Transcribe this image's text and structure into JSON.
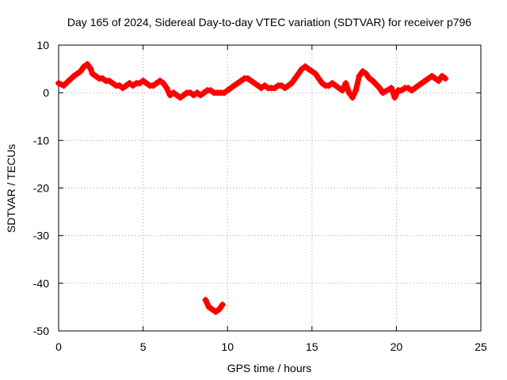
{
  "chart_data": {
    "type": "scatter",
    "title": "Day 165 of 2024, Sidereal Day-to-day VTEC variation (SDTVAR) for receiver p796",
    "xlabel": "GPS time / hours",
    "ylabel": "SDTVAR / TECUs",
    "xlim": [
      0,
      25
    ],
    "ylim": [
      -50,
      10
    ],
    "xticks": [
      "0",
      "5",
      "10",
      "15",
      "20",
      "25"
    ],
    "yticks": [
      "10",
      "0",
      "-10",
      "-20",
      "-30",
      "-40",
      "-50"
    ],
    "grid": true,
    "marker": "plus",
    "series": [
      {
        "name": "SDTVAR",
        "color": "#ff0000",
        "x": [
          0.0,
          0.3,
          0.6,
          0.9,
          1.1,
          1.3,
          1.5,
          1.7,
          1.9,
          2.0,
          2.2,
          2.4,
          2.6,
          2.8,
          3.0,
          3.2,
          3.4,
          3.6,
          3.8,
          4.0,
          4.2,
          4.4,
          4.6,
          4.8,
          5.0,
          5.2,
          5.4,
          5.6,
          5.8,
          6.0,
          6.2,
          6.4,
          6.6,
          6.8,
          7.0,
          7.2,
          7.4,
          7.6,
          7.8,
          8.0,
          8.2,
          8.4,
          8.6,
          8.8,
          9.0,
          9.2,
          9.4,
          9.6,
          9.8,
          10.0,
          10.2,
          10.4,
          10.6,
          10.8,
          11.0,
          11.2,
          11.4,
          11.6,
          11.8,
          12.0,
          12.2,
          12.4,
          12.6,
          12.8,
          13.0,
          13.2,
          13.4,
          13.6,
          13.8,
          14.0,
          14.2,
          14.4,
          14.6,
          14.8,
          15.0,
          15.2,
          15.4,
          15.6,
          15.8,
          16.0,
          16.2,
          16.4,
          16.6,
          16.8,
          17.0,
          17.2,
          17.4,
          17.6,
          17.8,
          18.0,
          18.2,
          18.4,
          18.6,
          19.0,
          19.2,
          19.7,
          19.9,
          20.1,
          20.3,
          20.5,
          20.7,
          20.9,
          21.1,
          21.3,
          21.5,
          21.7,
          21.9,
          22.1,
          22.3,
          22.5,
          22.7,
          22.9,
          8.7,
          8.9,
          9.1,
          9.3,
          9.5,
          9.7
        ],
        "y": [
          2.0,
          1.5,
          2.5,
          3.5,
          4.0,
          4.5,
          5.5,
          6.0,
          5.0,
          4.0,
          3.5,
          3.0,
          3.0,
          2.5,
          2.5,
          2.0,
          1.5,
          1.5,
          1.0,
          1.5,
          2.0,
          1.5,
          2.0,
          2.0,
          2.5,
          2.0,
          1.5,
          1.5,
          2.0,
          2.5,
          2.0,
          1.0,
          -0.5,
          0.0,
          -0.5,
          -1.0,
          -0.5,
          0.0,
          0.0,
          -0.5,
          0.0,
          -0.5,
          0.0,
          0.5,
          0.5,
          0.0,
          0.0,
          0.0,
          0.0,
          0.5,
          1.0,
          1.5,
          2.0,
          2.5,
          3.0,
          3.0,
          2.5,
          2.0,
          1.5,
          1.0,
          1.5,
          1.0,
          1.0,
          1.0,
          1.5,
          1.5,
          1.0,
          1.5,
          2.0,
          3.0,
          4.0,
          5.0,
          5.5,
          5.0,
          4.5,
          4.0,
          3.0,
          2.0,
          1.5,
          1.5,
          2.0,
          1.5,
          1.0,
          0.5,
          2.0,
          0.0,
          -1.0,
          0.5,
          3.5,
          4.5,
          4.0,
          3.0,
          2.5,
          1.0,
          0.0,
          1.0,
          -1.0,
          0.5,
          0.5,
          1.0,
          1.0,
          0.5,
          1.0,
          1.5,
          2.0,
          2.5,
          3.0,
          3.5,
          3.0,
          2.5,
          3.5,
          3.0,
          -43.5,
          -45.0,
          -45.5,
          -46.0,
          -45.5,
          -44.5
        ]
      }
    ]
  }
}
